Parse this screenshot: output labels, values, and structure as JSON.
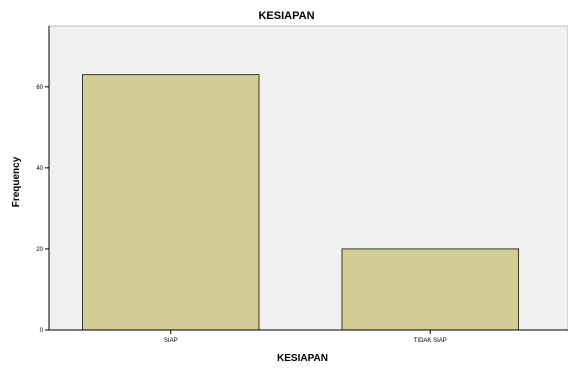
{
  "chart_data": {
    "type": "bar",
    "title": "KESIAPAN",
    "xlabel": "KESIAPAN",
    "ylabel": "Frequency",
    "categories": [
      "SIAP",
      "TIDAK SIAP"
    ],
    "values": [
      63,
      20
    ],
    "ylim": [
      0,
      75
    ],
    "yticks": [
      0,
      20,
      40,
      60
    ],
    "grid": false,
    "legend": "none",
    "colors": {
      "bar_fill": "#d2cc96",
      "bar_stroke": "#3a3a28",
      "plot_background": "#f0f0f0",
      "axis": "#000000"
    }
  }
}
